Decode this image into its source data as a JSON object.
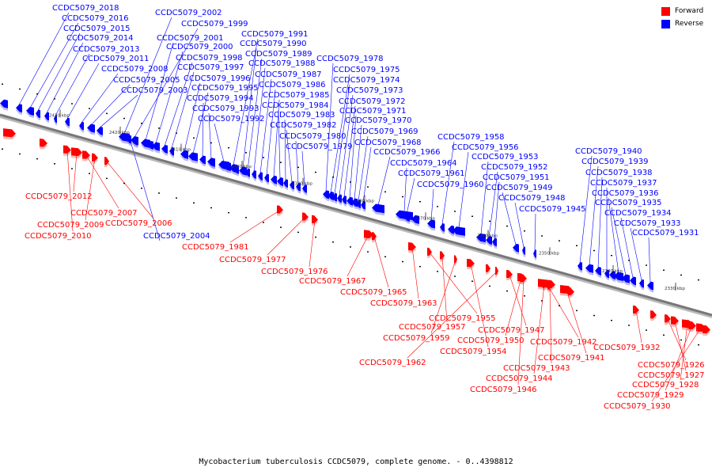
{
  "caption": "Mycobacterium tuberculosis CCDC5079, complete genome. - 0..4398812",
  "legend": {
    "forward_label": "Forward",
    "reverse_label": "Reverse",
    "forward_color": "#ff0000",
    "reverse_color": "#0000ff"
  },
  "scale_labels": [
    "2430 kbp",
    "2420 kbp",
    "2410 kbp",
    "2400 kbp",
    "2390 kbp",
    "2380 kbp",
    "2370 kbp",
    "2360 kbp",
    "2350 kbp",
    "2340 kbp",
    "2330 kbp"
  ],
  "reverse_genes": [
    "CCDC5079_2018",
    "CCDC5079_2016",
    "CCDC5079_2015",
    "CCDC5079_2014",
    "CCDC5079_2013",
    "CCDC5079_2011",
    "CCDC5079_2008",
    "CCDC5079_2005",
    "CCDC5079_2003",
    "CCDC5079_2002",
    "CCDC5079_1999",
    "CCDC5079_2001",
    "CCDC5079_2000",
    "CCDC5079_1998",
    "CCDC5079_1997",
    "CCDC5079_1996",
    "CCDC5079_1995",
    "CCDC5079_1994",
    "CCDC5079_1993",
    "CCDC5079_1992",
    "CCDC5079_1991",
    "CCDC5079_1990",
    "CCDC5079_1989",
    "CCDC5079_1988",
    "CCDC5079_1987",
    "CCDC5079_1986",
    "CCDC5079_1985",
    "CCDC5079_1984",
    "CCDC5079_1983",
    "CCDC5079_1982",
    "CCDC5079_1980",
    "CCDC5079_1979",
    "CCDC5079_1978",
    "CCDC5079_1975",
    "CCDC5079_1974",
    "CCDC5079_1973",
    "CCDC5079_1972",
    "CCDC5079_1971",
    "CCDC5079_1970",
    "CCDC5079_1969",
    "CCDC5079_1968",
    "CCDC5079_1966",
    "CCDC5079_1964",
    "CCDC5079_1961",
    "CCDC5079_1960",
    "CCDC5079_1958",
    "CCDC5079_1956",
    "CCDC5079_1953",
    "CCDC5079_1952",
    "CCDC5079_1951",
    "CCDC5079_1949",
    "CCDC5079_1948",
    "CCDC5079_1945",
    "CCDC5079_1940",
    "CCDC5079_1939",
    "CCDC5079_1938",
    "CCDC5079_1937",
    "CCDC5079_1936",
    "CCDC5079_1935",
    "CCDC5079_1934",
    "CCDC5079_1933",
    "CCDC5079_1931",
    "CCDC5079_2004"
  ],
  "forward_genes": [
    "CCDC5079_2012",
    "CCDC5079_2007",
    "CCDC5079_2009",
    "CCDC5079_2006",
    "CCDC5079_2010",
    "CCDC5079_1981",
    "CCDC5079_1977",
    "CCDC5079_1976",
    "CCDC5079_1967",
    "CCDC5079_1965",
    "CCDC5079_1963",
    "CCDC5079_1955",
    "CCDC5079_1957",
    "CCDC5079_1959",
    "CCDC5079_1954",
    "CCDC5079_1962",
    "CCDC5079_1947",
    "CCDC5079_1950",
    "CCDC5079_1942",
    "CCDC5079_1941",
    "CCDC5079_1943",
    "CCDC5079_1944",
    "CCDC5079_1946",
    "CCDC5079_1932",
    "CCDC5079_1926",
    "CCDC5079_1927",
    "CCDC5079_1928",
    "CCDC5079_1929",
    "CCDC5079_1930"
  ]
}
